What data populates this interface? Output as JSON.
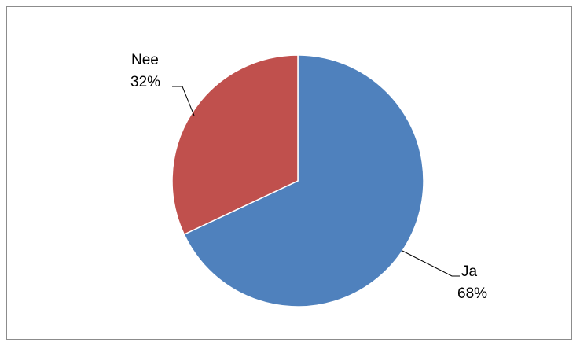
{
  "chart_data": {
    "type": "pie",
    "title": "",
    "slices": [
      {
        "label": "Ja",
        "value": 68,
        "display": "68%",
        "color": "#4f81bd"
      },
      {
        "label": "Nee",
        "value": 32,
        "display": "32%",
        "color": "#c0504d"
      }
    ],
    "legend": "none",
    "data_labels": "outside-with-leader-lines"
  }
}
